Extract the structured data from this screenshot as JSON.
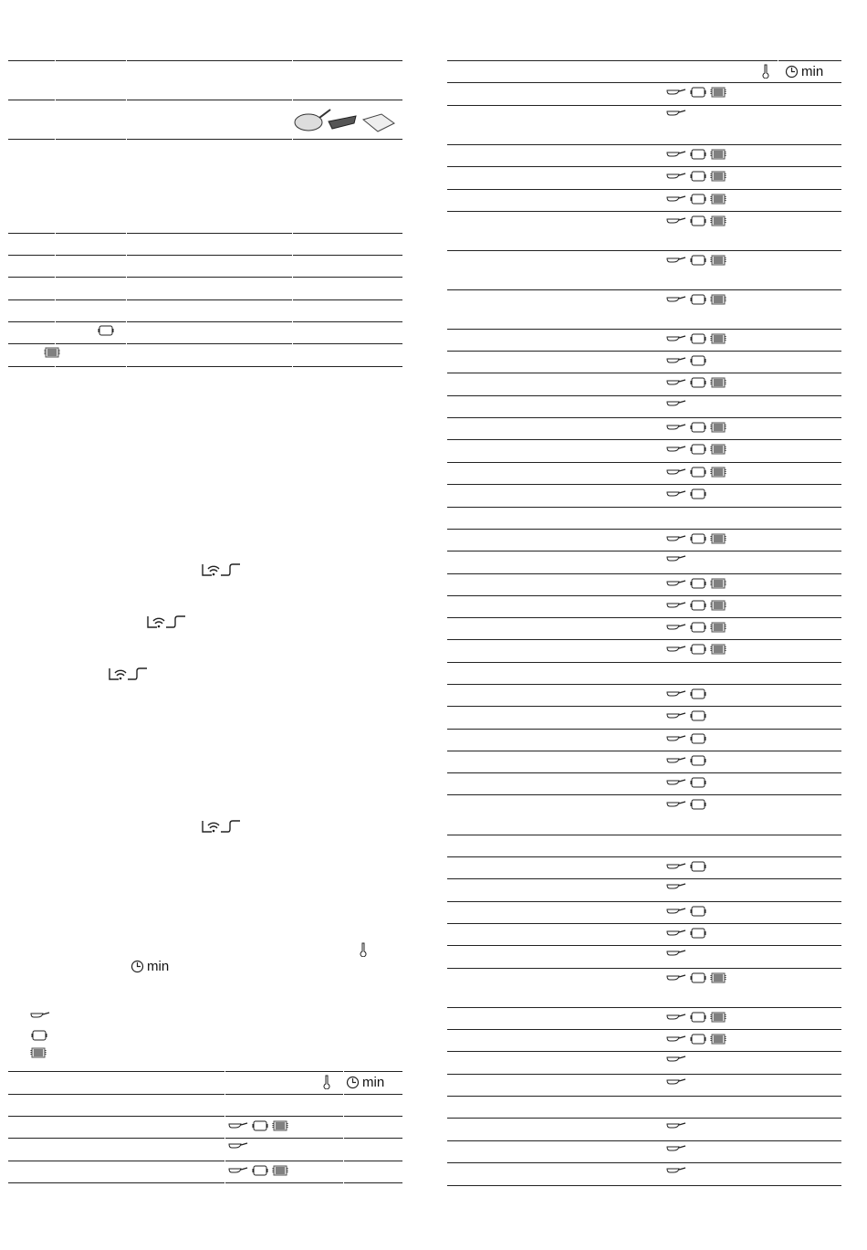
{
  "header_units": {
    "temperature_icon": "thermometer-icon",
    "time_icon": "clock-icon",
    "time_label": "min"
  },
  "accessory_icons": {
    "p": "pan-icon",
    "b": "baking-tray-icon",
    "g": "grill-tray-icon"
  },
  "left_top_table": {
    "image": "pan-grill-tray-illustration",
    "row_icons": [
      [],
      [],
      [],
      [],
      [],
      [],
      [
        "b"
      ],
      [
        "g"
      ]
    ]
  },
  "wifi_icon": "home-connect-icon",
  "legend_icons": [
    "p",
    "b",
    "g"
  ],
  "left_bottom_table": {
    "rows": [
      [],
      [
        "p",
        "b",
        "g"
      ],
      [
        "p"
      ],
      [
        "p",
        "b",
        "g"
      ]
    ]
  },
  "right_table": {
    "rows": [
      [
        "p",
        "b",
        "g"
      ],
      [
        "p"
      ],
      [
        "p",
        "b",
        "g"
      ],
      [
        "p",
        "b",
        "g"
      ],
      [
        "p",
        "b",
        "g"
      ],
      [
        "p",
        "b",
        "g"
      ],
      [
        "p",
        "b",
        "g"
      ],
      [
        "p",
        "b",
        "g"
      ],
      [
        "p",
        "b",
        "g"
      ],
      [
        "p",
        "b"
      ],
      [
        "p",
        "b",
        "g"
      ],
      [
        "p"
      ],
      [
        "p",
        "b",
        "g"
      ],
      [
        "p",
        "b",
        "g"
      ],
      [
        "p",
        "b",
        "g"
      ],
      [
        "p",
        "b"
      ],
      [],
      [
        "p",
        "b",
        "g"
      ],
      [
        "p"
      ],
      [
        "p",
        "b",
        "g"
      ],
      [
        "p",
        "b",
        "g"
      ],
      [
        "p",
        "b",
        "g"
      ],
      [
        "p",
        "b",
        "g"
      ],
      [],
      [
        "p",
        "b"
      ],
      [
        "p",
        "b"
      ],
      [
        "p",
        "b"
      ],
      [
        "p",
        "b"
      ],
      [
        "p",
        "b"
      ],
      [
        "p",
        "b"
      ],
      [],
      [
        "p",
        "b"
      ],
      [
        "p"
      ],
      [
        "p",
        "b"
      ],
      [
        "p",
        "b"
      ],
      [
        "p"
      ],
      [
        "p",
        "b",
        "g"
      ],
      [
        "p",
        "b",
        "g"
      ],
      [
        "p",
        "b",
        "g"
      ],
      [
        "p"
      ],
      [
        "p"
      ],
      [],
      [
        "p"
      ],
      [
        "p"
      ],
      [
        "p"
      ]
    ]
  }
}
